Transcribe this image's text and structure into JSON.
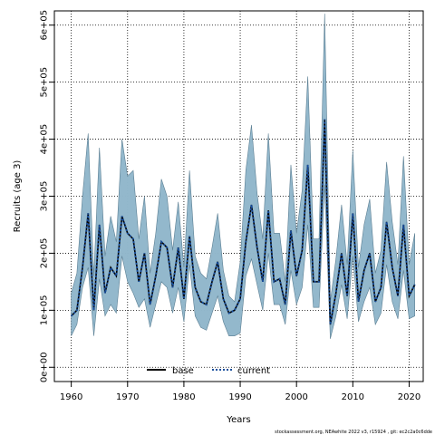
{
  "chart_data": {
    "type": "area",
    "title": "",
    "xlabel": "Years",
    "ylabel": "Recruits (age 3)",
    "xlim": [
      1957,
      2022.5
    ],
    "ylim": [
      -25000,
      625000
    ],
    "x_ticks": [
      1960,
      1970,
      1980,
      1990,
      2000,
      2010,
      2020
    ],
    "y_ticks": [
      0,
      100000,
      200000,
      300000,
      400000,
      500000,
      600000
    ],
    "y_tick_labels": [
      "0e+00",
      "1e+05",
      "2e+05",
      "3e+05",
      "4e+05",
      "5e+05",
      "6e+05"
    ],
    "grid": true,
    "legend_position": "bottom-center",
    "colors": {
      "base": "#000000",
      "current": "#1a4f9c",
      "ci_base": "#8fb2c6",
      "ci_current": "#9fd8f0",
      "outline": "#5c7f93"
    },
    "x": [
      1960,
      1961,
      1962,
      1963,
      1964,
      1965,
      1966,
      1967,
      1968,
      1969,
      1970,
      1971,
      1972,
      1973,
      1974,
      1975,
      1976,
      1977,
      1978,
      1979,
      1980,
      1981,
      1982,
      1983,
      1984,
      1985,
      1986,
      1987,
      1988,
      1989,
      1990,
      1991,
      1992,
      1993,
      1994,
      1995,
      1996,
      1997,
      1998,
      1999,
      2000,
      2001,
      2002,
      2003,
      2004,
      2005,
      2006,
      2007,
      2008,
      2009,
      2010,
      2011,
      2012,
      2013,
      2014,
      2015,
      2016,
      2017,
      2018,
      2019,
      2020,
      2021
    ],
    "series": [
      {
        "name": "base",
        "values": [
          90000,
          100000,
          175000,
          270000,
          100000,
          250000,
          130000,
          175000,
          160000,
          265000,
          235000,
          225000,
          150000,
          200000,
          110000,
          160000,
          220000,
          210000,
          140000,
          210000,
          120000,
          230000,
          140000,
          115000,
          110000,
          150000,
          185000,
          120000,
          95000,
          100000,
          120000,
          220000,
          285000,
          210000,
          150000,
          275000,
          150000,
          155000,
          110000,
          240000,
          160000,
          205000,
          355000,
          150000,
          150000,
          435000,
          75000,
          130000,
          200000,
          125000,
          270000,
          115000,
          170000,
          200000,
          115000,
          140000,
          255000,
          175000,
          125000,
          250000,
          125000,
          145000
        ],
        "lower": [
          55000,
          75000,
          140000,
          175000,
          55000,
          155000,
          90000,
          110000,
          95000,
          195000,
          150000,
          130000,
          105000,
          120000,
          70000,
          110000,
          150000,
          140000,
          95000,
          140000,
          80000,
          180000,
          90000,
          70000,
          65000,
          95000,
          125000,
          80000,
          55000,
          55000,
          60000,
          160000,
          190000,
          145000,
          100000,
          200000,
          110000,
          110000,
          75000,
          170000,
          110000,
          140000,
          250000,
          105000,
          105000,
          320000,
          50000,
          90000,
          145000,
          85000,
          195000,
          80000,
          115000,
          140000,
          75000,
          95000,
          180000,
          115000,
          85000,
          170000,
          85000,
          90000
        ],
        "upper": [
          130000,
          165000,
          300000,
          410000,
          160000,
          385000,
          195000,
          265000,
          220000,
          400000,
          335000,
          345000,
          225000,
          300000,
          165000,
          235000,
          330000,
          300000,
          205000,
          290000,
          175000,
          345000,
          195000,
          165000,
          155000,
          210000,
          270000,
          170000,
          125000,
          115000,
          185000,
          345000,
          425000,
          305000,
          225000,
          410000,
          235000,
          235000,
          150000,
          355000,
          235000,
          310000,
          510000,
          225000,
          225000,
          620000,
          115000,
          190000,
          285000,
          180000,
          380000,
          175000,
          250000,
          295000,
          165000,
          205000,
          360000,
          255000,
          180000,
          370000,
          180000,
          235000
        ]
      },
      {
        "name": "current",
        "values": [
          90000,
          100000,
          175000,
          270000,
          100000,
          250000,
          130000,
          175000,
          160000,
          265000,
          235000,
          225000,
          150000,
          200000,
          110000,
          160000,
          220000,
          210000,
          140000,
          210000,
          120000,
          230000,
          140000,
          115000,
          110000,
          150000,
          185000,
          120000,
          95000,
          100000,
          120000,
          220000,
          285000,
          210000,
          150000,
          275000,
          150000,
          155000,
          110000,
          240000,
          160000,
          205000,
          355000,
          150000,
          150000,
          435000,
          75000,
          130000,
          200000,
          125000,
          270000,
          115000,
          170000,
          200000,
          115000,
          140000,
          255000,
          175000,
          125000,
          250000,
          125000,
          145000
        ],
        "lower": [
          55000,
          75000,
          140000,
          175000,
          55000,
          155000,
          90000,
          110000,
          95000,
          195000,
          150000,
          130000,
          105000,
          120000,
          70000,
          110000,
          150000,
          140000,
          95000,
          140000,
          80000,
          180000,
          90000,
          70000,
          65000,
          95000,
          125000,
          80000,
          55000,
          55000,
          60000,
          160000,
          190000,
          145000,
          100000,
          200000,
          110000,
          110000,
          75000,
          170000,
          110000,
          140000,
          250000,
          105000,
          105000,
          320000,
          50000,
          90000,
          145000,
          85000,
          195000,
          80000,
          115000,
          140000,
          75000,
          95000,
          180000,
          115000,
          85000,
          170000,
          85000,
          90000
        ],
        "upper": [
          130000,
          165000,
          300000,
          410000,
          160000,
          385000,
          195000,
          265000,
          220000,
          400000,
          335000,
          345000,
          225000,
          300000,
          165000,
          235000,
          330000,
          300000,
          205000,
          290000,
          175000,
          345000,
          195000,
          165000,
          155000,
          210000,
          270000,
          170000,
          125000,
          115000,
          185000,
          345000,
          425000,
          305000,
          225000,
          410000,
          235000,
          235000,
          150000,
          355000,
          235000,
          310000,
          510000,
          225000,
          225000,
          620000,
          115000,
          190000,
          285000,
          180000,
          380000,
          175000,
          250000,
          295000,
          165000,
          205000,
          360000,
          255000,
          180000,
          370000,
          180000,
          235000
        ]
      }
    ]
  },
  "footer": "stockassessment.org, NEAwhite 2022 v3, r15924 , git: ec2c2a0c6dde"
}
